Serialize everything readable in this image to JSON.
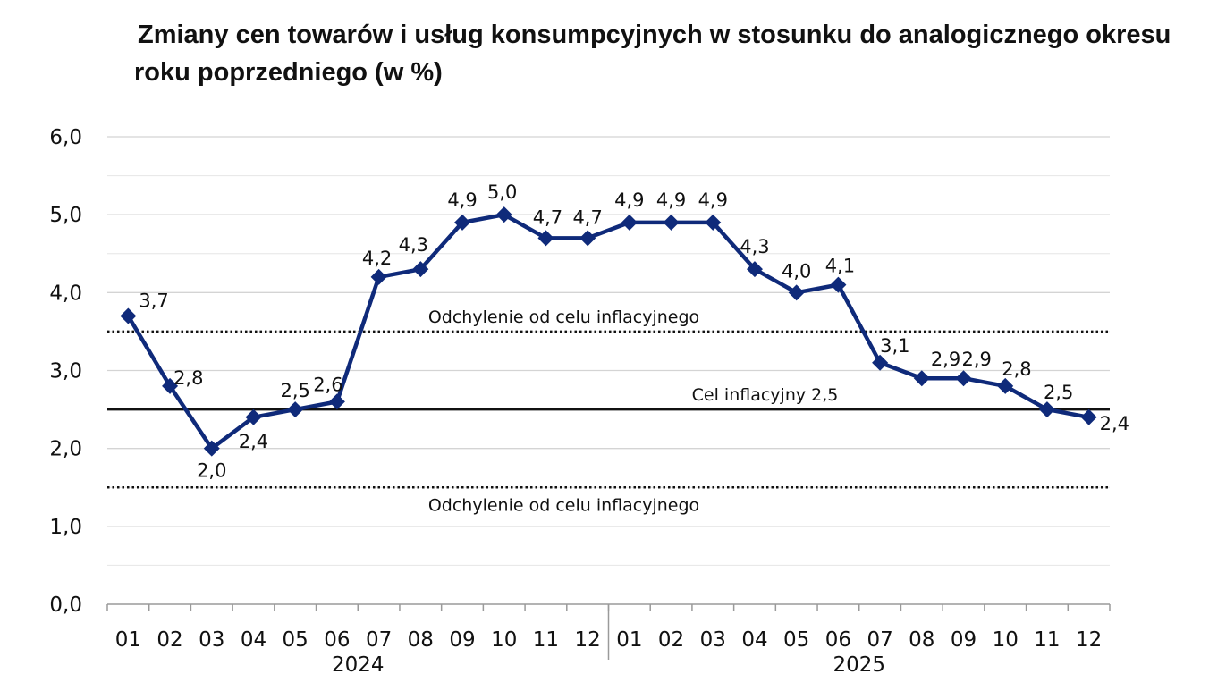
{
  "title_line1": "Zmiany cen towarów i usług konsumpcyjnych w stosunku do analogicznego okresu",
  "title_line2": "roku poprzedniego (w %)",
  "chart_data": {
    "type": "line",
    "title": "Zmiany cen towarów i usług konsumpcyjnych w stosunku do analogicznego okresu roku poprzedniego (w %)",
    "categories": [
      "01",
      "02",
      "03",
      "04",
      "05",
      "06",
      "07",
      "08",
      "09",
      "10",
      "11",
      "12",
      "01",
      "02",
      "03",
      "04",
      "05",
      "06",
      "07",
      "08",
      "09",
      "10",
      "11",
      "12"
    ],
    "year_groups": [
      {
        "label": "2024",
        "start": 0,
        "end": 11
      },
      {
        "label": "2025",
        "start": 12,
        "end": 23
      }
    ],
    "values": [
      3.7,
      2.8,
      2.0,
      2.4,
      2.5,
      2.6,
      4.2,
      4.3,
      4.9,
      5.0,
      4.7,
      4.7,
      4.9,
      4.9,
      4.9,
      4.3,
      4.0,
      4.1,
      3.1,
      2.9,
      2.9,
      2.8,
      2.5,
      2.4
    ],
    "value_labels": [
      "3,7",
      "2,8",
      "2,0",
      "2,4",
      "2,5",
      "2,6",
      "4,2",
      "4,3",
      "4,9",
      "5,0",
      "4,7",
      "4,7",
      "4,9",
      "4,9",
      "4,9",
      "4,3",
      "4,0",
      "4,1",
      "3,1",
      "2,9",
      "2,9",
      "2,8",
      "2,5",
      "2,4"
    ],
    "ylim": [
      0,
      6
    ],
    "yticks": [
      "0,0",
      "1,0",
      "2,0",
      "3,0",
      "4,0",
      "5,0",
      "6,0"
    ],
    "grid": true,
    "reference_lines": [
      {
        "value": 2.5,
        "style": "solid",
        "label": "Cel inflacyjny 2,5"
      },
      {
        "value": 3.5,
        "style": "dotted",
        "label": "Odchylenie od celu inflacyjnego"
      },
      {
        "value": 1.5,
        "style": "dotted",
        "label": "Odchylenie od celu inflacyjnego"
      }
    ],
    "colors": {
      "series": "#0f2a7a",
      "grid": "#d4d4d4",
      "reference": "#111111"
    }
  }
}
